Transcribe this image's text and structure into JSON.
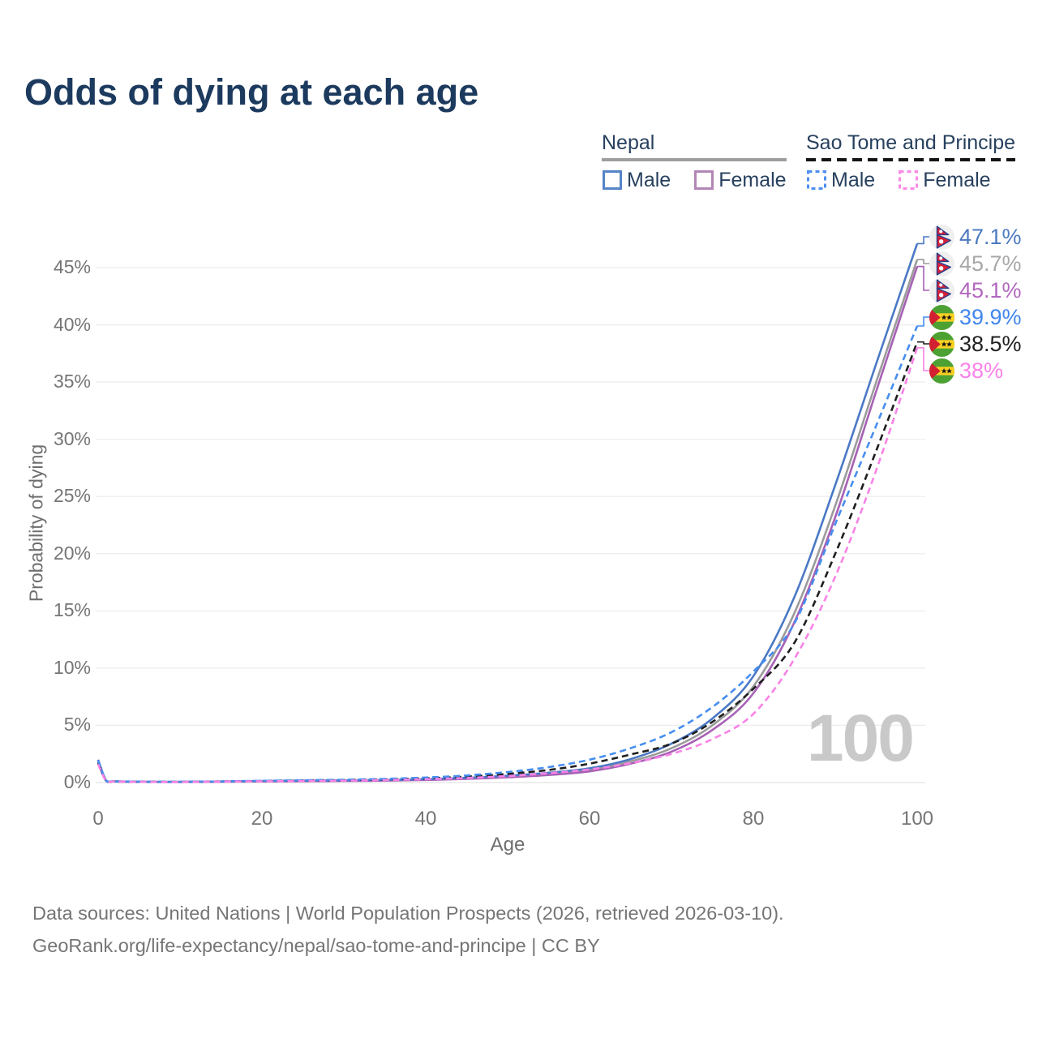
{
  "title": "Odds of dying at each age",
  "legend": {
    "groups": [
      {
        "name": "Nepal",
        "style": "solid",
        "rule_color": "#9e9e9e",
        "items": [
          {
            "label": "Male",
            "color": "#5585c8"
          },
          {
            "label": "Female",
            "color": "#b286b5"
          }
        ]
      },
      {
        "name": "Sao Tome and Principe",
        "style": "dashed",
        "rule_color": "#141414",
        "items": [
          {
            "label": "Male",
            "color": "#4d8ff2"
          },
          {
            "label": "Female",
            "color": "#fb8ae6"
          }
        ]
      }
    ]
  },
  "chart_data": {
    "type": "line",
    "title": "Odds of dying at each age",
    "xlabel": "Age",
    "ylabel": "Probability of dying",
    "xlim": [
      0,
      100
    ],
    "ylim": [
      0,
      47.5
    ],
    "grid": "horizontal",
    "legend_position": "top-right",
    "watermark": "100",
    "xticks": [
      0,
      20,
      40,
      60,
      80,
      100
    ],
    "ytick_values": [
      0,
      5,
      10,
      15,
      20,
      25,
      30,
      35,
      40,
      45
    ],
    "ytick_labels": [
      "0%",
      "5%",
      "10%",
      "15%",
      "20%",
      "25%",
      "30%",
      "35%",
      "40%",
      "45%"
    ],
    "ages": [
      0,
      1,
      2,
      5,
      10,
      15,
      20,
      25,
      30,
      35,
      40,
      45,
      50,
      55,
      60,
      65,
      70,
      75,
      80,
      85,
      90,
      95,
      100
    ],
    "series": [
      {
        "name": "Nepal Male",
        "country": "Nepal",
        "sex": "Male",
        "color": "#4a79c5",
        "label_color": "#4d7ac2",
        "dash": "solid",
        "flag": "nepal",
        "end_label": "47.1%",
        "values": [
          2.0,
          0.15,
          0.1,
          0.07,
          0.06,
          0.09,
          0.14,
          0.17,
          0.19,
          0.23,
          0.3,
          0.42,
          0.6,
          0.86,
          1.25,
          2.05,
          3.4,
          5.6,
          9.3,
          16.2,
          26.0,
          36.6,
          47.1
        ]
      },
      {
        "name": "Nepal Both sexes",
        "country": "Nepal",
        "sex": "All",
        "color": "#9b9b9b",
        "label_color": "#a8a8a8",
        "dash": "solid",
        "flag": "nepal",
        "end_label": "45.7%",
        "values": [
          1.85,
          0.14,
          0.09,
          0.06,
          0.06,
          0.08,
          0.12,
          0.15,
          0.17,
          0.2,
          0.26,
          0.36,
          0.52,
          0.75,
          1.1,
          1.85,
          3.0,
          5.0,
          8.4,
          14.8,
          24.2,
          35.0,
          45.7
        ]
      },
      {
        "name": "Nepal Female",
        "country": "Nepal",
        "sex": "Female",
        "color": "#a761b5",
        "label_color": "#b168bd",
        "dash": "solid",
        "flag": "nepal",
        "end_label": "45.1%",
        "values": [
          1.7,
          0.13,
          0.09,
          0.06,
          0.05,
          0.07,
          0.1,
          0.12,
          0.14,
          0.17,
          0.23,
          0.32,
          0.46,
          0.66,
          0.98,
          1.65,
          2.7,
          4.6,
          7.8,
          14.0,
          23.2,
          34.2,
          45.1
        ]
      },
      {
        "name": "Sao Tome and Principe Male",
        "country": "Sao Tome and Principe",
        "sex": "Male",
        "color": "#478ef0",
        "label_color": "#4186f0",
        "dash": "dashed",
        "flag": "stp",
        "end_label": "39.9%",
        "values": [
          1.9,
          0.16,
          0.11,
          0.08,
          0.07,
          0.1,
          0.15,
          0.2,
          0.25,
          0.32,
          0.44,
          0.62,
          0.92,
          1.35,
          2.0,
          3.0,
          4.4,
          6.6,
          9.7,
          13.9,
          22.6,
          31.2,
          39.9
        ]
      },
      {
        "name": "Sao Tome and Principe Both sexes",
        "country": "Sao Tome and Principe",
        "sex": "All",
        "color": "#1f1f1f",
        "label_color": "#212121",
        "dash": "dashed",
        "flag": "stp",
        "end_label": "38.5%",
        "values": [
          1.75,
          0.15,
          0.1,
          0.07,
          0.06,
          0.09,
          0.13,
          0.17,
          0.21,
          0.27,
          0.37,
          0.52,
          0.76,
          1.1,
          1.65,
          2.45,
          3.4,
          5.3,
          8.2,
          12.2,
          20.0,
          29.0,
          38.5
        ]
      },
      {
        "name": "Sao Tome and Principe Female",
        "country": "Sao Tome and Principe",
        "sex": "Female",
        "color": "#f983e7",
        "label_color": "#fb82e9",
        "dash": "dashed",
        "flag": "stp",
        "end_label": "38%",
        "values": [
          1.6,
          0.13,
          0.09,
          0.06,
          0.05,
          0.08,
          0.11,
          0.14,
          0.17,
          0.22,
          0.29,
          0.4,
          0.57,
          0.82,
          1.15,
          1.7,
          2.5,
          3.8,
          6.0,
          10.8,
          18.0,
          27.3,
          38.0
        ]
      }
    ]
  },
  "footer": {
    "line1": "Data sources: United Nations | World Population Prospects (2026, retrieved 2026-03-10).",
    "line2": "GeoRank.org/life-expectancy/nepal/sao-tome-and-principe | CC BY"
  }
}
